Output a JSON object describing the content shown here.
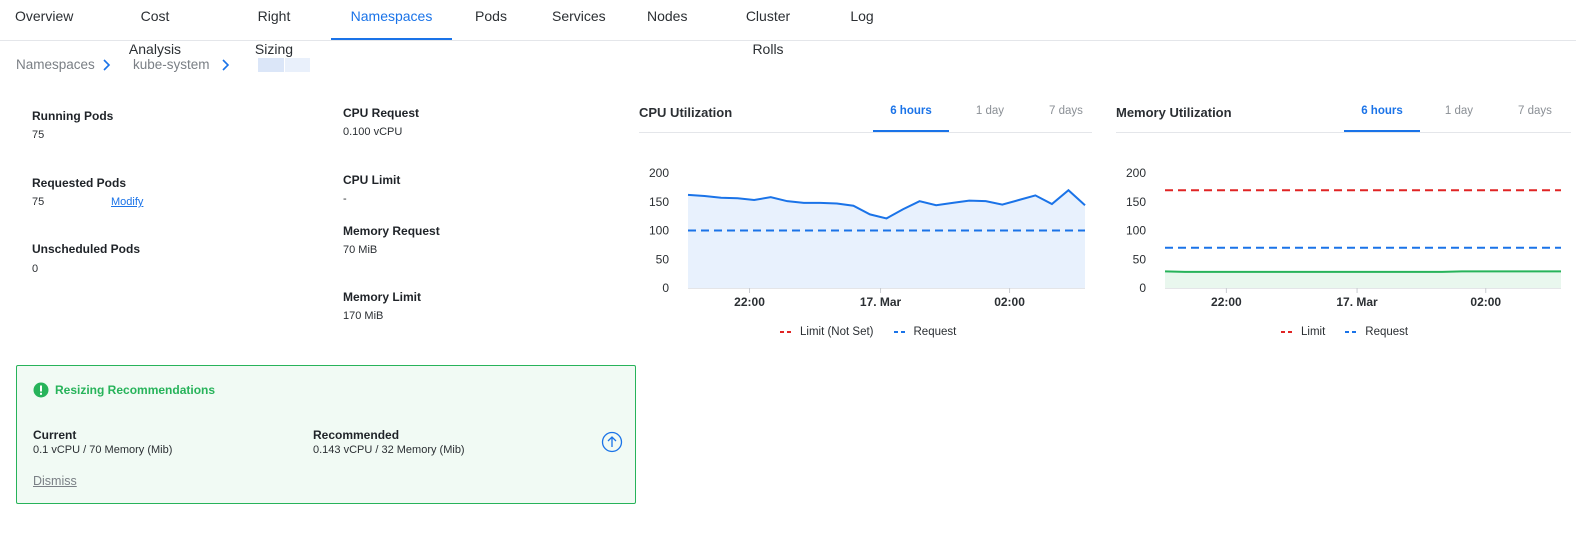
{
  "tabs": [
    {
      "label": "Overview"
    },
    {
      "label": "Cost Analysis"
    },
    {
      "label": "Right Sizing"
    },
    {
      "label": "Namespaces"
    },
    {
      "label": "Pods"
    },
    {
      "label": "Services"
    },
    {
      "label": "Nodes"
    },
    {
      "label": "Cluster Rolls"
    },
    {
      "label": "Log"
    }
  ],
  "active_tab": "Namespaces",
  "breadcrumb": [
    "Namespaces",
    "kube-system"
  ],
  "pods": {
    "running_label": "Running Pods",
    "running_value": "75",
    "requested_label": "Requested Pods",
    "requested_value": "75",
    "modify_label": "Modify",
    "unscheduled_label": "Unscheduled Pods",
    "unscheduled_value": "0"
  },
  "resources": {
    "cpu_request_label": "CPU Request",
    "cpu_request_value": "0.100 vCPU",
    "cpu_limit_label": "CPU Limit",
    "cpu_limit_value": "-",
    "memory_request_label": "Memory Request",
    "memory_request_value": "70 MiB",
    "memory_limit_label": "Memory Limit",
    "memory_limit_value": "170 MiB"
  },
  "cpu_chart": {
    "title": "CPU Utilization",
    "ranges": [
      "6 hours",
      "1 day",
      "7 days"
    ],
    "active_range": "6 hours",
    "legend": [
      "Limit (Not Set)",
      "Request"
    ]
  },
  "memory_chart": {
    "title": "Memory Utilization",
    "ranges": [
      "6 hours",
      "1 day",
      "7 days"
    ],
    "active_range": "6 hours",
    "legend": [
      "Limit",
      "Request"
    ]
  },
  "chart_data": [
    {
      "type": "area",
      "title": "CPU Utilization",
      "yticks": [
        0,
        50,
        100,
        150,
        200
      ],
      "ylim": [
        0,
        200
      ],
      "xticks": [
        "22:00",
        "17. Mar",
        "02:00"
      ],
      "series": [
        {
          "name": "Usage",
          "values": [
            162,
            160,
            157,
            156,
            153,
            158,
            151,
            148,
            148,
            147,
            143,
            128,
            121,
            137,
            151,
            144,
            148,
            152,
            151,
            145,
            153,
            161,
            146,
            170,
            144
          ]
        },
        {
          "name": "Request",
          "values": [
            100,
            100
          ]
        }
      ],
      "colors": {
        "usage": "#1a73e8",
        "fill": "#e8f1fd",
        "request": "#1a73e8",
        "limit": "#e02424"
      }
    },
    {
      "type": "area",
      "title": "Memory Utilization",
      "yticks": [
        0,
        50,
        100,
        150,
        200
      ],
      "ylim": [
        0,
        200
      ],
      "xticks": [
        "22:00",
        "17. Mar",
        "02:00"
      ],
      "series": [
        {
          "name": "Usage",
          "values": [
            29,
            28,
            28,
            28,
            28,
            28,
            28,
            28,
            28,
            28,
            28,
            28,
            28,
            28,
            28,
            29,
            29,
            29,
            29,
            29,
            29
          ]
        },
        {
          "name": "Limit",
          "values": [
            170,
            170
          ]
        },
        {
          "name": "Request",
          "values": [
            70,
            70
          ]
        }
      ],
      "colors": {
        "usage": "#27b35a",
        "fill": "#e9f7ee",
        "request": "#1a73e8",
        "limit": "#e02424"
      }
    }
  ],
  "recommendations": {
    "title": "Resizing Recommendations",
    "current_label": "Current",
    "current_value": "0.1 vCPU / 70 Memory (Mib)",
    "recommended_label": "Recommended",
    "recommended_value": "0.143 vCPU / 32 Memory (Mib)",
    "dismiss_label": "Dismiss",
    "accent": "#27b35a"
  }
}
